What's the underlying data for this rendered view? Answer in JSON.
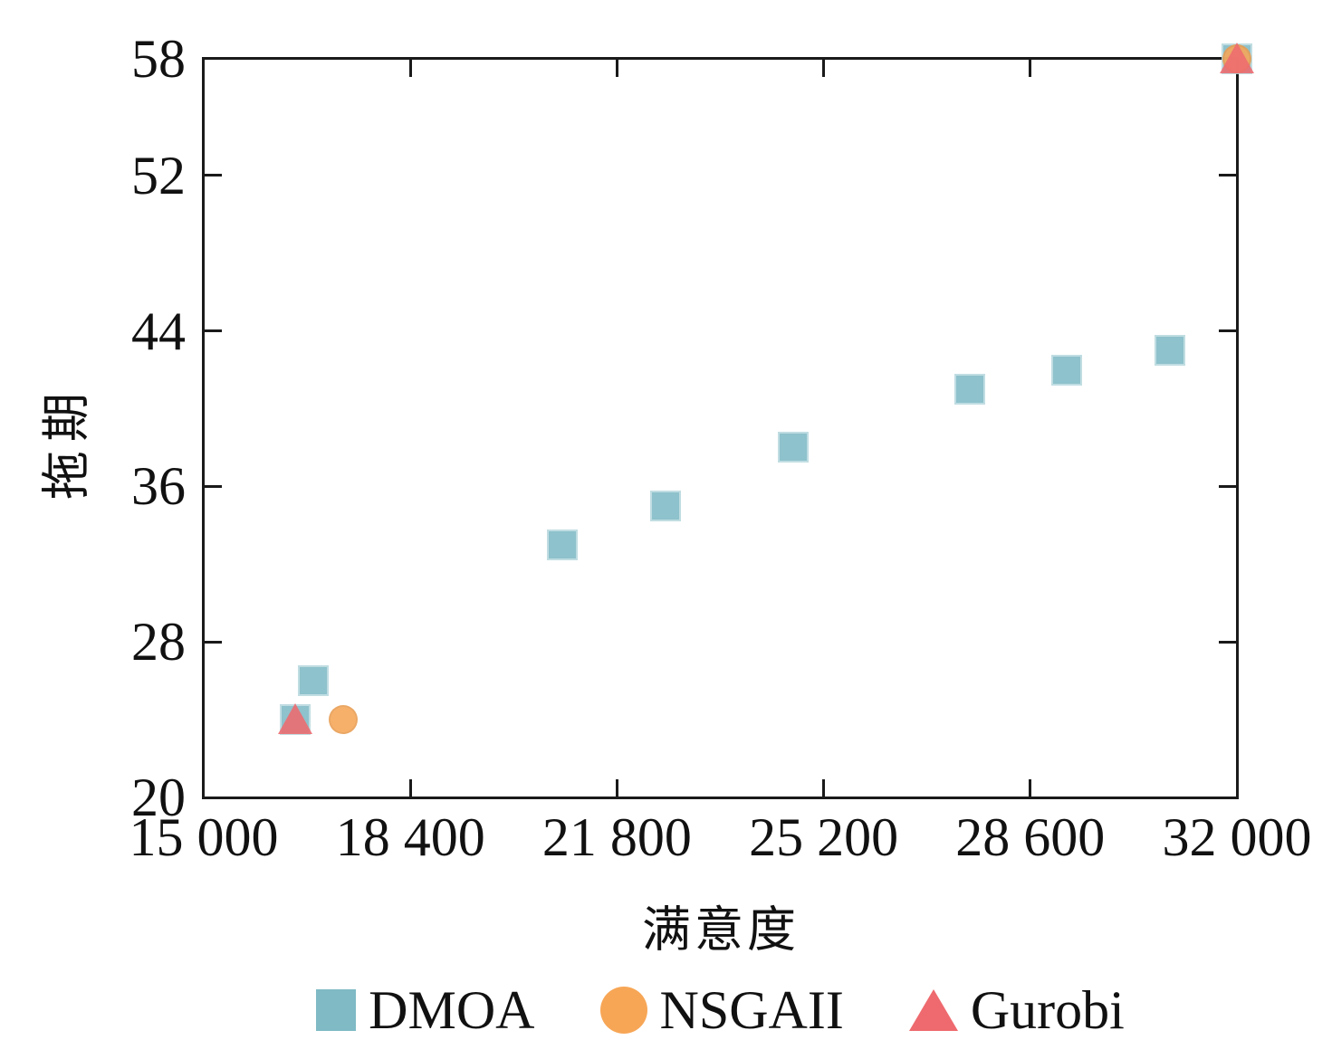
{
  "figure": {
    "background": "#ffffff",
    "axis_color": "#1a1a1a",
    "text_color": "#111111"
  },
  "chart_data": {
    "type": "scatter",
    "title": "",
    "xlabel": "满意度",
    "ylabel": "拖期",
    "xlim": [
      15000,
      32000
    ],
    "ylim": [
      20,
      58
    ],
    "x_ticks": [
      15000,
      18400,
      21800,
      25200,
      28600,
      32000
    ],
    "x_tick_labels": [
      "15 000",
      "18 400",
      "21 800",
      "25 200",
      "28 600",
      "32 000"
    ],
    "y_ticks": [
      20,
      28,
      36,
      44,
      52,
      58
    ],
    "y_tick_labels": [
      "20",
      "28",
      "36",
      "44",
      "52",
      "58"
    ],
    "grid": false,
    "legend_position": "bottom",
    "series": [
      {
        "name": "DMOA",
        "marker": "square",
        "color": "#7fbac5",
        "points": [
          [
            16500,
            24
          ],
          [
            16800,
            26
          ],
          [
            20900,
            33
          ],
          [
            22600,
            35
          ],
          [
            24700,
            38
          ],
          [
            27600,
            41
          ],
          [
            29200,
            42
          ],
          [
            30900,
            43
          ],
          [
            32000,
            58
          ]
        ]
      },
      {
        "name": "NSGAII",
        "marker": "circle",
        "color": "#f7a656",
        "points": [
          [
            17300,
            24
          ],
          [
            32000,
            58
          ]
        ]
      },
      {
        "name": "Gurobi",
        "marker": "triangle",
        "color": "#ee6a6e",
        "points": [
          [
            16500,
            24
          ],
          [
            32000,
            58
          ]
        ]
      }
    ]
  }
}
